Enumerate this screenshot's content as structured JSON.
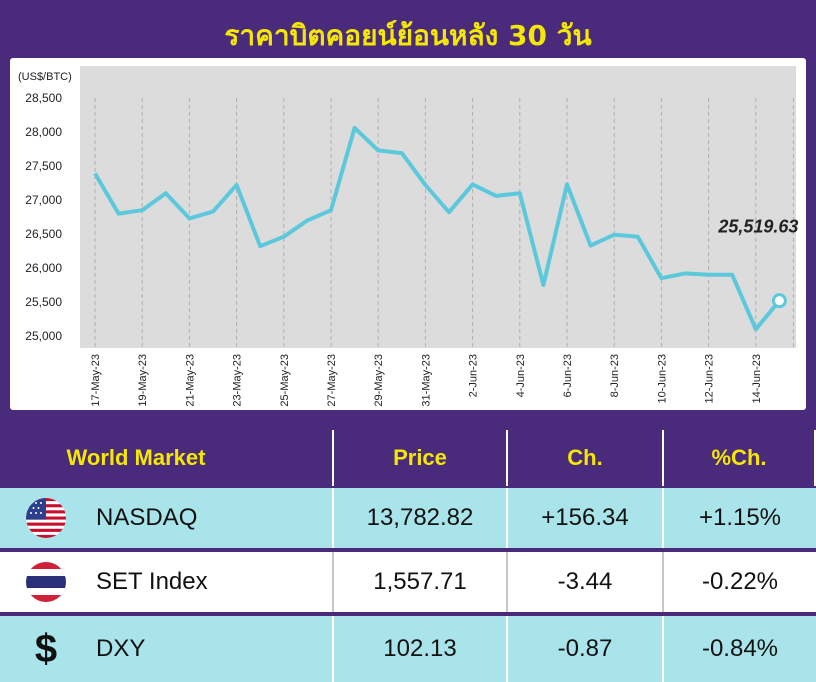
{
  "title": "ราคาบิตคอยน์ย้อนหลัง 30 วัน",
  "chart_data": {
    "type": "line",
    "ylabel": "(US$/BTC)",
    "ylim": [
      25000,
      28500
    ],
    "yticks": [
      "28,500",
      "28,000",
      "27,500",
      "27,000",
      "26,500",
      "26,000",
      "25,500",
      "25,000"
    ],
    "ytick_values": [
      28500,
      28000,
      27500,
      27000,
      26500,
      26000,
      25500,
      25000
    ],
    "xticks": [
      "17-May-23",
      "19-May-23",
      "21-May-23",
      "23-May-23",
      "25-May-23",
      "27-May-23",
      "29-May-23",
      "31-May-23",
      "2-Jun-23",
      "4-Jun-23",
      "6-Jun-23",
      "8-Jun-23",
      "10-Jun-23",
      "12-Jun-23",
      "14-Jun-23"
    ],
    "series": [
      {
        "values": [
          27390,
          26800,
          26850,
          27100,
          26730,
          26830,
          27220,
          26320,
          26460,
          26700,
          26850,
          28060,
          27730,
          27690,
          27220,
          26820,
          27230,
          27060,
          27100,
          25750,
          27230,
          26330,
          26490,
          26460,
          25850,
          25920,
          25900,
          25900,
          25100,
          25519.63
        ]
      }
    ],
    "last_value_label": "25,519.63",
    "line_color": "#5bc8dc",
    "grid": "vertical"
  },
  "table": {
    "headers": [
      "World Market",
      "Price",
      "Ch.",
      "%Ch."
    ],
    "rows": [
      {
        "icon": "us-flag-icon",
        "name": "NASDAQ",
        "price": "13,782.82",
        "ch": "+156.34",
        "pct": "+1.15%"
      },
      {
        "icon": "thai-flag-icon",
        "name": "SET Index",
        "price": "1,557.71",
        "ch": "-3.44",
        "pct": "-0.22%"
      },
      {
        "icon": "dollar-icon",
        "name": "DXY",
        "price": "102.13",
        "ch": "-0.87",
        "pct": "-0.84%"
      }
    ]
  }
}
